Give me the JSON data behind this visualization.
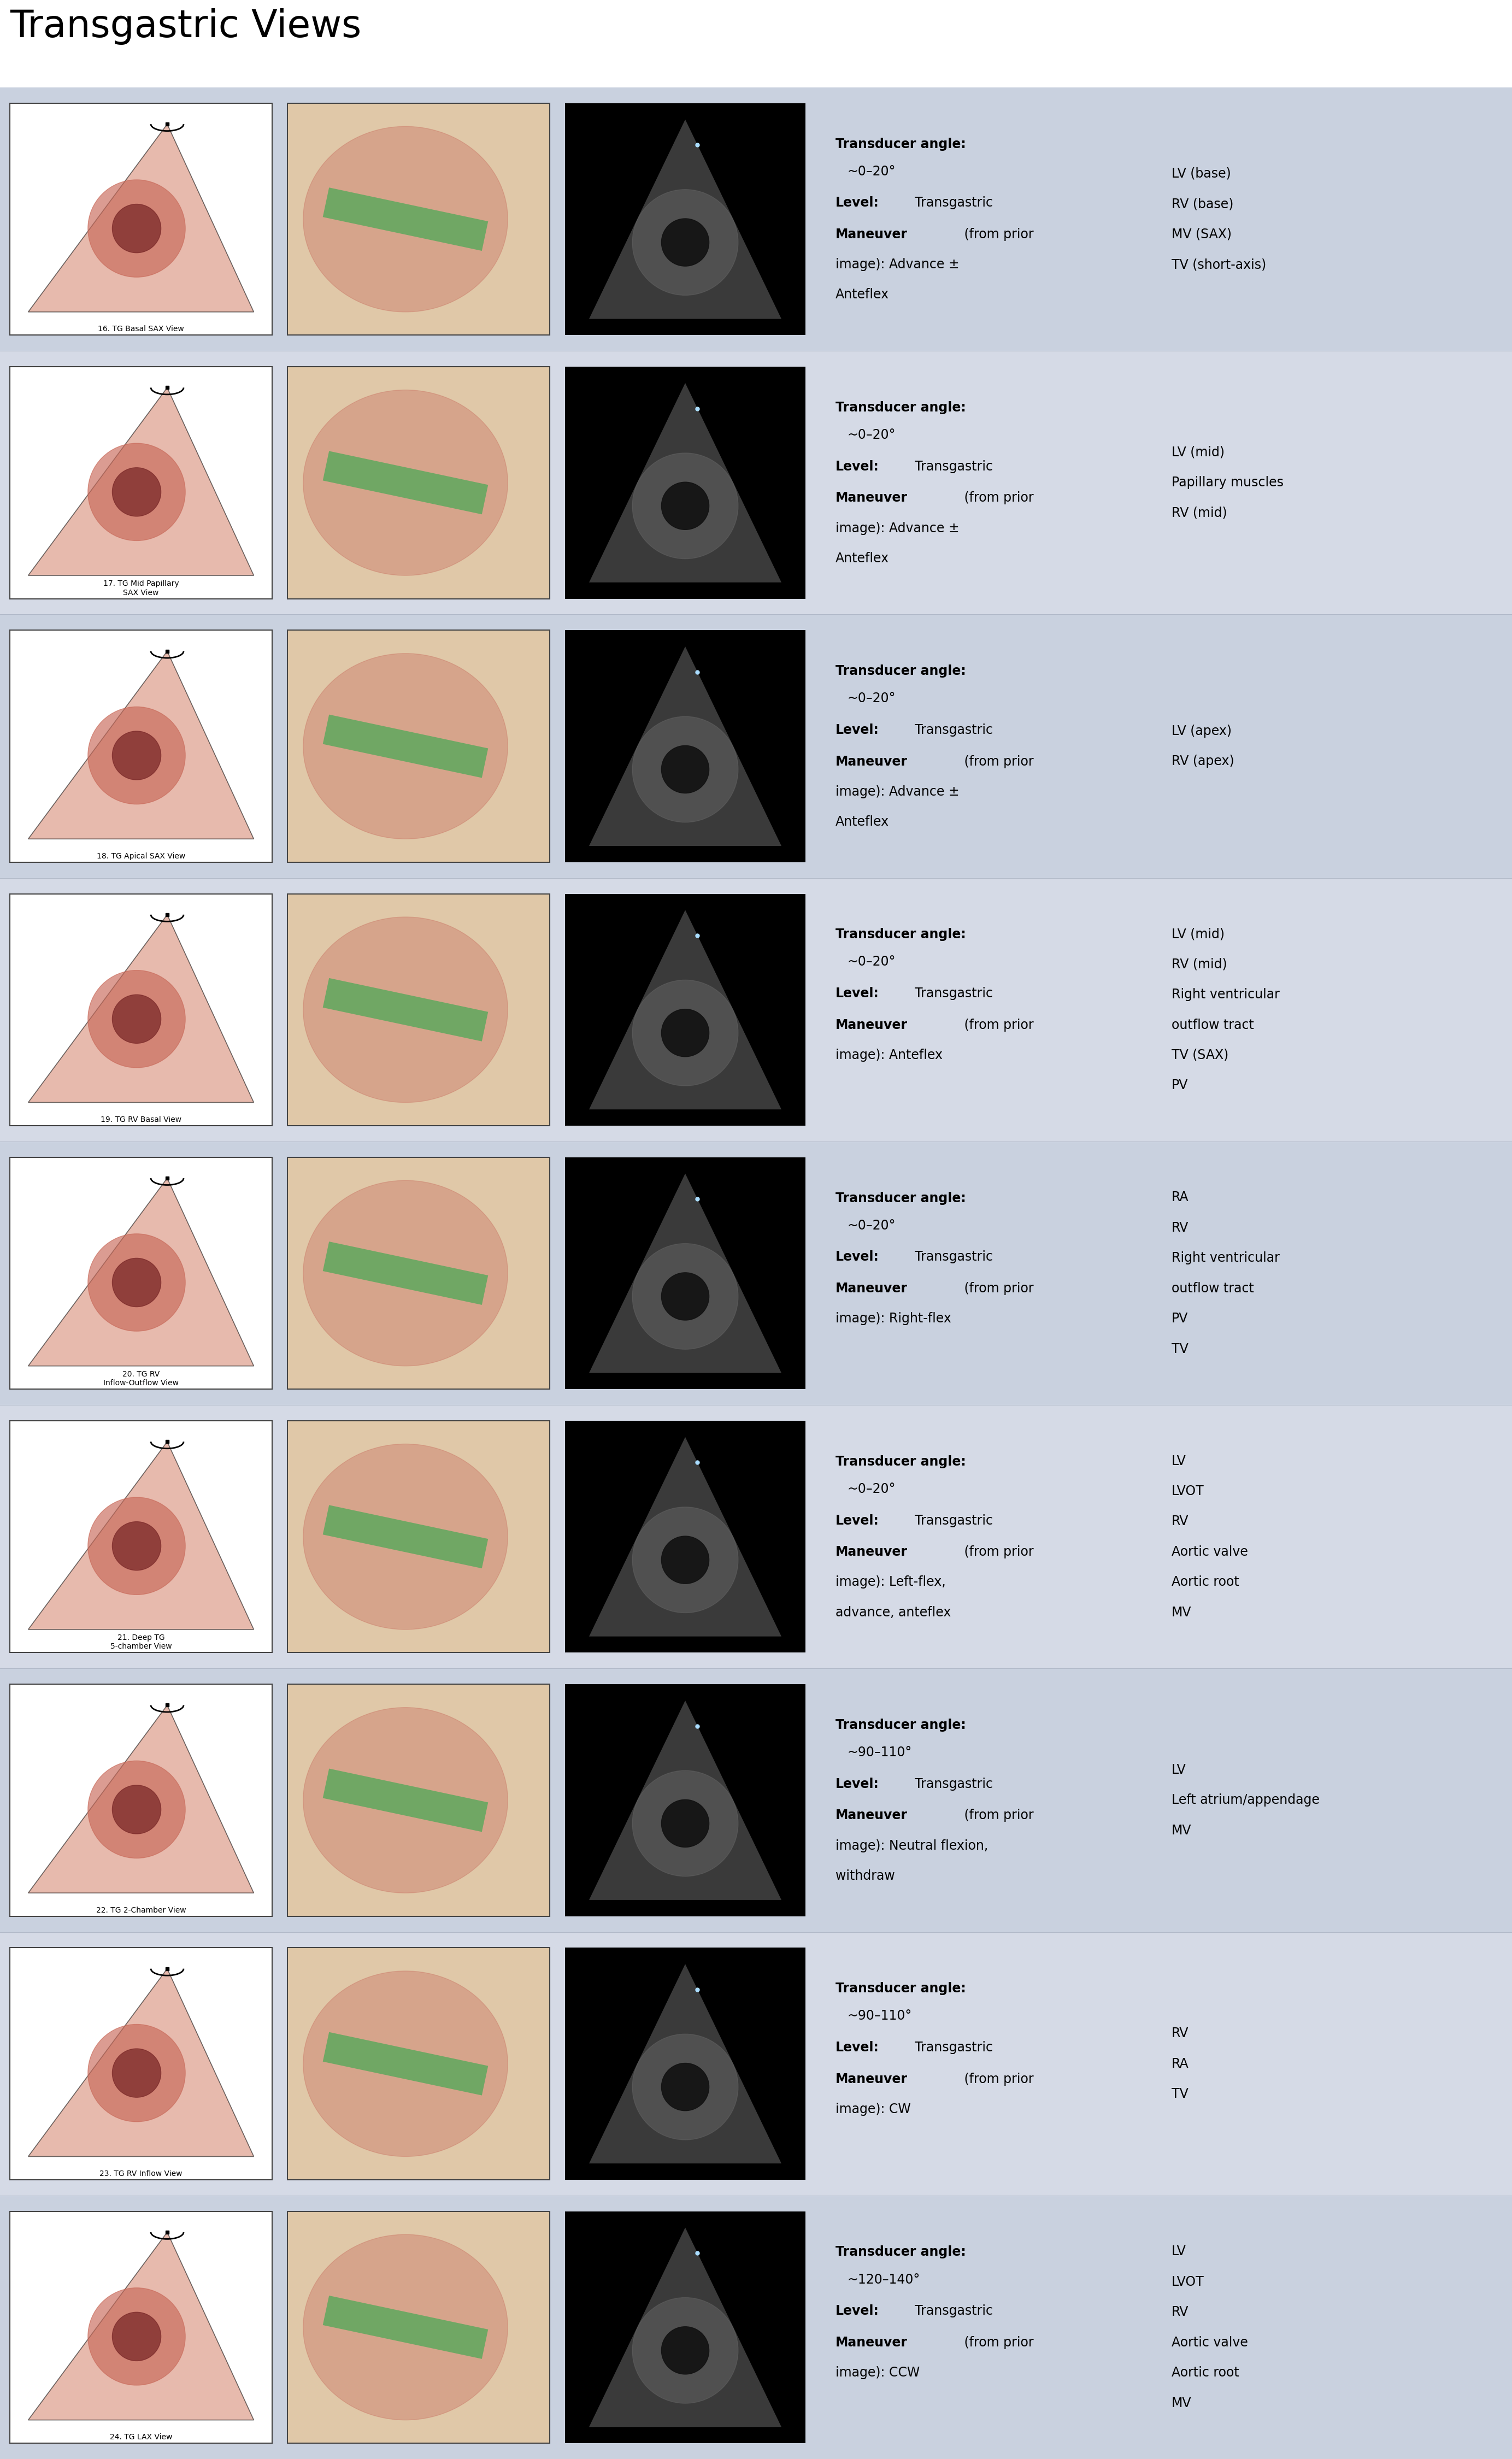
{
  "title": "Transgastric Views",
  "title_fontsize": 50,
  "bg_colors": [
    "#c9d1df",
    "#d5dae6"
  ],
  "rows": [
    {
      "view_num": "16. TG Basal SAX View",
      "angle": "~0–20°",
      "level": "Transgastric",
      "maneuver_line1": "Maneuver (from prior",
      "maneuver_line2": "image): Advance ±",
      "maneuver_line3": "Anteflex",
      "structures": [
        "LV (base)",
        "RV (base)",
        "MV (SAX)",
        "TV (short-axis)"
      ]
    },
    {
      "view_num": "17. TG Mid Papillary\nSAX View",
      "angle": "~0–20°",
      "level": "Transgastric",
      "maneuver_line1": "Maneuver (from prior",
      "maneuver_line2": "image): Advance ±",
      "maneuver_line3": "Anteflex",
      "structures": [
        "LV (mid)",
        "Papillary muscles",
        "RV (mid)"
      ]
    },
    {
      "view_num": "18. TG Apical SAX View",
      "angle": "~0–20°",
      "level": "Transgastric",
      "maneuver_line1": "Maneuver (from prior",
      "maneuver_line2": "image): Advance ±",
      "maneuver_line3": "Anteflex",
      "structures": [
        "LV (apex)",
        "RV (apex)"
      ]
    },
    {
      "view_num": "19. TG RV Basal View",
      "angle": "~0–20°",
      "level": "Transgastric",
      "maneuver_line1": "Maneuver (from prior",
      "maneuver_line2": "image): Anteflex",
      "maneuver_line3": "",
      "structures": [
        "LV (mid)",
        "RV (mid)",
        "Right ventricular",
        "outflow tract",
        "TV (SAX)",
        "PV"
      ]
    },
    {
      "view_num": "20. TG RV\nInflow-Outflow View",
      "angle": "~0–20°",
      "level": "Transgastric",
      "maneuver_line1": "Maneuver (from prior",
      "maneuver_line2": "image): Right-flex",
      "maneuver_line3": "",
      "structures": [
        "RA",
        "RV",
        "Right ventricular",
        "outflow tract",
        "PV",
        "TV"
      ]
    },
    {
      "view_num": "21. Deep TG\n5-chamber View",
      "angle": "~0–20°",
      "level": "Transgastric",
      "maneuver_line1": "Maneuver (from prior",
      "maneuver_line2": "image): Left-flex,",
      "maneuver_line3": "advance, anteflex",
      "structures": [
        "LV",
        "LVOT",
        "RV",
        "Aortic valve",
        "Aortic root",
        "MV"
      ]
    },
    {
      "view_num": "22. TG 2-Chamber View",
      "angle": "~90–110°",
      "level": "Transgastric",
      "maneuver_line1": "Maneuver (from prior",
      "maneuver_line2": "image): Neutral flexion,",
      "maneuver_line3": "withdraw",
      "structures": [
        "LV",
        "Left atrium/appendage",
        "MV"
      ]
    },
    {
      "view_num": "23. TG RV Inflow View",
      "angle": "~90–110°",
      "level": "Transgastric",
      "maneuver_line1": "Maneuver (from prior",
      "maneuver_line2": "image): CW",
      "maneuver_line3": "",
      "structures": [
        "RV",
        "RA",
        "TV"
      ]
    },
    {
      "view_num": "24. TG LAX View",
      "angle": "~120–140°",
      "level": "Transgastric",
      "maneuver_line1": "Maneuver (from prior",
      "maneuver_line2": "image): CCW",
      "maneuver_line3": "",
      "structures": [
        "LV",
        "LVOT",
        "RV",
        "Aortic valve",
        "Aortic root",
        "MV"
      ]
    }
  ]
}
